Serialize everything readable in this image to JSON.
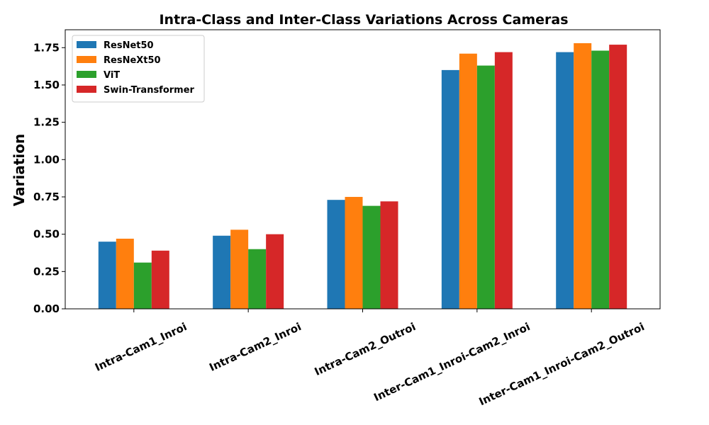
{
  "chart_data": {
    "type": "bar",
    "title": "Intra-Class and Inter-Class Variations Across Cameras",
    "xlabel": "",
    "ylabel": "Variation",
    "ylim": [
      0,
      1.87
    ],
    "yticks": [
      "0.00",
      "0.25",
      "0.50",
      "0.75",
      "1.00",
      "1.25",
      "1.50",
      "1.75"
    ],
    "categories": [
      "Intra-Cam1_Inroi",
      "Intra-Cam2_Inroi",
      "Intra-Cam2_Outroi",
      "Inter-Cam1_Inroi-Cam2_Inroi",
      "Inter-Cam1_Inroi-Cam2_Outroi"
    ],
    "series": [
      {
        "name": "ResNet50",
        "color": "#1f77b4",
        "values": [
          0.45,
          0.49,
          0.73,
          1.6,
          1.72
        ]
      },
      {
        "name": "ResNeXt50",
        "color": "#ff7f0e",
        "values": [
          0.47,
          0.53,
          0.75,
          1.71,
          1.78
        ]
      },
      {
        "name": "ViT",
        "color": "#2ca02c",
        "values": [
          0.31,
          0.4,
          0.69,
          1.63,
          1.73
        ]
      },
      {
        "name": "Swin-Transformer",
        "color": "#d62728",
        "values": [
          0.39,
          0.5,
          0.72,
          1.72,
          1.77
        ]
      }
    ],
    "grid": false,
    "legend_position": "top-left"
  }
}
